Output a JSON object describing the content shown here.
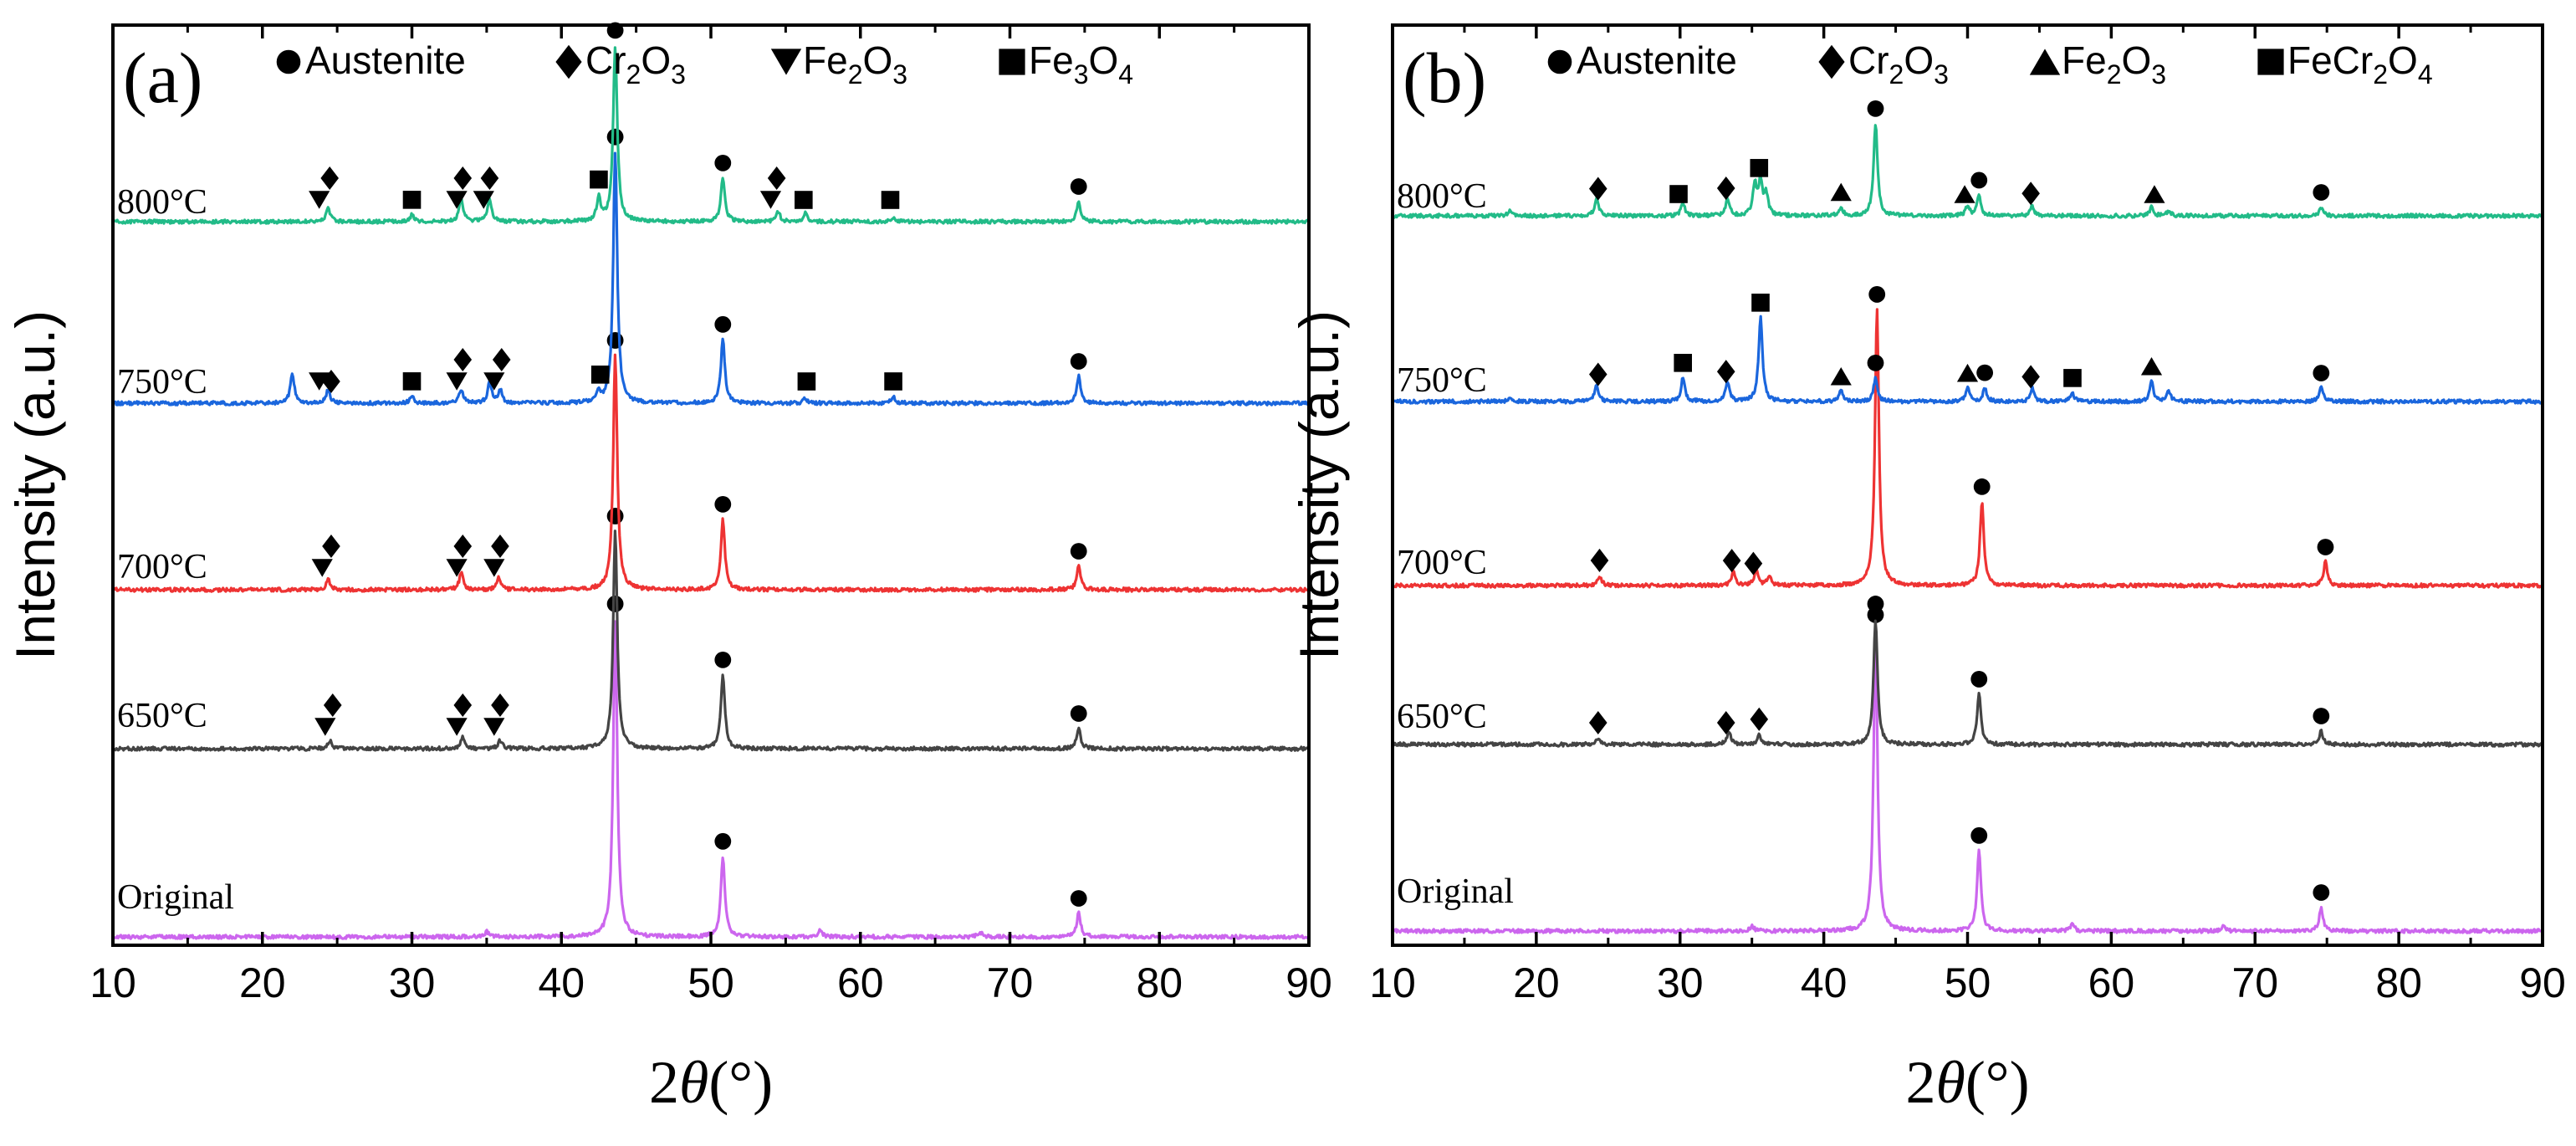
{
  "chart_data": [
    {
      "type": "line",
      "panel": "(a)",
      "xlabel_prefix": "2",
      "xlabel_symbol": "θ",
      "xlabel_unit": "(°)",
      "ylabel": "Intensity (a.u.)",
      "xlim": [
        10,
        90
      ],
      "xticks": [
        10,
        20,
        30,
        40,
        50,
        60,
        70,
        80,
        90
      ],
      "legend": [
        {
          "marker": "circle",
          "text": "Austenite"
        },
        {
          "marker": "diamond",
          "text": "Cr",
          "sub1": "2",
          "text2": "O",
          "sub2": "3"
        },
        {
          "marker": "triangle-down",
          "text": "Fe",
          "sub1": "2",
          "text2": "O",
          "sub2": "3"
        },
        {
          "marker": "square",
          "text": "Fe",
          "sub1": "3",
          "text2": "O",
          "sub2": "4"
        }
      ],
      "series": [
        {
          "name": "Original",
          "color": "#cc66ee",
          "peaks": [
            [
              43.6,
              190
            ],
            [
              50.8,
              48
            ],
            [
              74.6,
              14
            ],
            [
              57.3,
              4
            ],
            [
              35.0,
              3
            ],
            [
              68.0,
              3
            ]
          ],
          "markers": [
            {
              "x": 43.6,
              "type": "circle"
            },
            {
              "x": 50.8,
              "type": "circle"
            },
            {
              "x": 74.6,
              "type": "circle"
            }
          ]
        },
        {
          "name": "650°C",
          "color": "#444444",
          "peaks": [
            [
              43.6,
              130
            ],
            [
              50.8,
              44
            ],
            [
              74.6,
              12
            ],
            [
              24.5,
              5
            ],
            [
              33.4,
              7
            ],
            [
              35.9,
              5
            ]
          ],
          "markers": [
            {
              "x": 24.2,
              "type": "triangle-down"
            },
            {
              "x": 24.7,
              "type": "diamond"
            },
            {
              "x": 33.0,
              "type": "triangle-down"
            },
            {
              "x": 33.4,
              "type": "diamond"
            },
            {
              "x": 35.5,
              "type": "triangle-down"
            },
            {
              "x": 35.9,
              "type": "diamond"
            },
            {
              "x": 43.6,
              "type": "circle"
            },
            {
              "x": 50.8,
              "type": "circle"
            },
            {
              "x": 74.6,
              "type": "circle"
            }
          ]
        },
        {
          "name": "700°C",
          "color": "#ee3333",
          "peaks": [
            [
              43.6,
              140
            ],
            [
              50.8,
              42
            ],
            [
              74.6,
              14
            ],
            [
              24.4,
              6
            ],
            [
              33.3,
              10
            ],
            [
              35.8,
              7
            ]
          ],
          "markers": [
            {
              "x": 24.0,
              "type": "triangle-down"
            },
            {
              "x": 24.6,
              "type": "diamond"
            },
            {
              "x": 33.0,
              "type": "triangle-down"
            },
            {
              "x": 33.4,
              "type": "diamond"
            },
            {
              "x": 35.5,
              "type": "triangle-down"
            },
            {
              "x": 35.9,
              "type": "diamond"
            },
            {
              "x": 43.6,
              "type": "circle"
            },
            {
              "x": 50.8,
              "type": "circle"
            },
            {
              "x": 74.6,
              "type": "circle"
            }
          ]
        },
        {
          "name": "750°C",
          "color": "#1a66dd",
          "peaks": [
            [
              43.6,
              150
            ],
            [
              50.8,
              38
            ],
            [
              74.6,
              16
            ],
            [
              22.0,
              18
            ],
            [
              24.4,
              8
            ],
            [
              30.0,
              4
            ],
            [
              33.3,
              8
            ],
            [
              35.2,
              12
            ],
            [
              35.9,
              8
            ],
            [
              42.5,
              6
            ],
            [
              56.3,
              3
            ],
            [
              62.2,
              4
            ]
          ],
          "markers": [
            {
              "x": 23.8,
              "type": "triangle-down"
            },
            {
              "x": 24.6,
              "type": "diamond"
            },
            {
              "x": 30.0,
              "type": "square"
            },
            {
              "x": 33.0,
              "type": "triangle-down"
            },
            {
              "x": 33.4,
              "type": "diamond"
            },
            {
              "x": 35.5,
              "type": "triangle-down"
            },
            {
              "x": 36.0,
              "type": "diamond"
            },
            {
              "x": 42.6,
              "type": "square"
            },
            {
              "x": 43.6,
              "type": "circle"
            },
            {
              "x": 50.8,
              "type": "circle"
            },
            {
              "x": 56.4,
              "type": "square"
            },
            {
              "x": 62.2,
              "type": "square"
            },
            {
              "x": 74.6,
              "type": "circle"
            }
          ]
        },
        {
          "name": "800°C",
          "color": "#22bb88",
          "peaks": [
            [
              43.6,
              105
            ],
            [
              50.8,
              26
            ],
            [
              74.6,
              12
            ],
            [
              24.4,
              8
            ],
            [
              30.0,
              4
            ],
            [
              33.3,
              14
            ],
            [
              35.2,
              14
            ],
            [
              42.5,
              14
            ],
            [
              54.5,
              6
            ],
            [
              56.3,
              5
            ],
            [
              62.2,
              3
            ]
          ],
          "markers": [
            {
              "x": 23.8,
              "type": "triangle-down"
            },
            {
              "x": 24.5,
              "type": "diamond"
            },
            {
              "x": 30.0,
              "type": "square"
            },
            {
              "x": 33.0,
              "type": "triangle-down"
            },
            {
              "x": 33.4,
              "type": "diamond"
            },
            {
              "x": 34.8,
              "type": "triangle-down"
            },
            {
              "x": 35.2,
              "type": "diamond"
            },
            {
              "x": 42.5,
              "type": "square"
            },
            {
              "x": 43.6,
              "type": "circle"
            },
            {
              "x": 50.8,
              "type": "circle"
            },
            {
              "x": 54.0,
              "type": "triangle-down"
            },
            {
              "x": 54.4,
              "type": "diamond"
            },
            {
              "x": 56.2,
              "type": "square"
            },
            {
              "x": 62.0,
              "type": "square"
            },
            {
              "x": 74.6,
              "type": "circle"
            }
          ]
        }
      ]
    },
    {
      "type": "line",
      "panel": "(b)",
      "xlabel_prefix": "2",
      "xlabel_symbol": "θ",
      "xlabel_unit": "(°)",
      "ylabel": "Intensity (a.u.)",
      "xlim": [
        10,
        90
      ],
      "xticks": [
        10,
        20,
        30,
        40,
        50,
        60,
        70,
        80,
        90
      ],
      "legend": [
        {
          "marker": "circle",
          "text": "Austenite"
        },
        {
          "marker": "diamond",
          "text": "Cr",
          "sub1": "2",
          "text2": "O",
          "sub2": "3"
        },
        {
          "marker": "triangle-up",
          "text": "Fe",
          "sub1": "2",
          "text2": "O",
          "sub2": "3"
        },
        {
          "marker": "square",
          "text": "FeCr",
          "sub1": "2",
          "text2": "O",
          "sub2": "4"
        }
      ],
      "series": [
        {
          "name": "Original",
          "color": "#cc66ee",
          "peaks": [
            [
              43.6,
              180
            ],
            [
              50.8,
              48
            ],
            [
              74.6,
              14
            ],
            [
              57.3,
              4
            ],
            [
              35.0,
              3
            ],
            [
              67.8,
              3
            ]
          ],
          "markers": [
            {
              "x": 43.6,
              "type": "circle"
            },
            {
              "x": 50.8,
              "type": "circle"
            },
            {
              "x": 74.6,
              "type": "circle"
            }
          ]
        },
        {
          "name": "650°C",
          "color": "#444444",
          "peaks": [
            [
              43.6,
              75
            ],
            [
              50.8,
              30
            ],
            [
              74.6,
              8
            ],
            [
              24.3,
              4
            ],
            [
              33.4,
              8
            ],
            [
              35.5,
              6
            ]
          ],
          "markers": [
            {
              "x": 24.3,
              "type": "diamond"
            },
            {
              "x": 33.2,
              "type": "diamond"
            },
            {
              "x": 35.5,
              "type": "diamond"
            },
            {
              "x": 43.6,
              "type": "circle"
            },
            {
              "x": 50.8,
              "type": "circle"
            },
            {
              "x": 74.6,
              "type": "circle"
            }
          ]
        },
        {
          "name": "700°C",
          "color": "#ee3333",
          "peaks": [
            [
              43.7,
              165
            ],
            [
              51.0,
              50
            ],
            [
              74.9,
              14
            ],
            [
              24.4,
              6
            ],
            [
              33.7,
              8
            ],
            [
              35.3,
              10
            ],
            [
              36.2,
              6
            ]
          ],
          "markers": [
            {
              "x": 24.4,
              "type": "diamond"
            },
            {
              "x": 33.6,
              "type": "diamond"
            },
            {
              "x": 35.1,
              "type": "diamond"
            },
            {
              "x": 43.7,
              "type": "circle"
            },
            {
              "x": 51.0,
              "type": "circle"
            },
            {
              "x": 74.9,
              "type": "circle"
            }
          ]
        },
        {
          "name": "750°C",
          "color": "#1a66dd",
          "peaks": [
            [
              35.6,
              50
            ],
            [
              43.6,
              14
            ],
            [
              50.0,
              8
            ],
            [
              51.2,
              8
            ],
            [
              24.2,
              10
            ],
            [
              30.2,
              14
            ],
            [
              33.3,
              12
            ],
            [
              41.2,
              6
            ],
            [
              54.5,
              8
            ],
            [
              57.3,
              5
            ],
            [
              62.8,
              12
            ],
            [
              64.0,
              6
            ],
            [
              74.6,
              8
            ],
            [
              18.2,
              3
            ]
          ],
          "markers": [
            {
              "x": 24.3,
              "type": "diamond"
            },
            {
              "x": 30.2,
              "type": "square"
            },
            {
              "x": 33.2,
              "type": "diamond"
            },
            {
              "x": 35.6,
              "type": "square"
            },
            {
              "x": 41.2,
              "type": "triangle-up"
            },
            {
              "x": 43.6,
              "type": "circle"
            },
            {
              "x": 50.0,
              "type": "triangle-up"
            },
            {
              "x": 51.2,
              "type": "circle"
            },
            {
              "x": 54.4,
              "type": "diamond"
            },
            {
              "x": 57.3,
              "type": "square"
            },
            {
              "x": 62.8,
              "type": "triangle-up"
            },
            {
              "x": 74.6,
              "type": "circle"
            }
          ]
        },
        {
          "name": "800°C",
          "color": "#22bb88",
          "peaks": [
            [
              43.6,
              55
            ],
            [
              35.2,
              18
            ],
            [
              35.6,
              20
            ],
            [
              36.0,
              12
            ],
            [
              24.2,
              10
            ],
            [
              30.2,
              8
            ],
            [
              33.3,
              10
            ],
            [
              41.2,
              5
            ],
            [
              50.0,
              6
            ],
            [
              50.8,
              12
            ],
            [
              54.5,
              6
            ],
            [
              62.8,
              5
            ],
            [
              64.0,
              3
            ],
            [
              74.6,
              5
            ],
            [
              18.2,
              3
            ]
          ],
          "markers": [
            {
              "x": 24.3,
              "type": "diamond"
            },
            {
              "x": 29.9,
              "type": "square"
            },
            {
              "x": 33.2,
              "type": "diamond"
            },
            {
              "x": 35.5,
              "type": "square"
            },
            {
              "x": 41.2,
              "type": "triangle-up"
            },
            {
              "x": 43.6,
              "type": "circle"
            },
            {
              "x": 49.8,
              "type": "triangle-up"
            },
            {
              "x": 50.8,
              "type": "circle"
            },
            {
              "x": 54.4,
              "type": "diamond"
            },
            {
              "x": 63.0,
              "type": "triangle-up"
            },
            {
              "x": 74.6,
              "type": "circle"
            }
          ]
        }
      ]
    }
  ]
}
